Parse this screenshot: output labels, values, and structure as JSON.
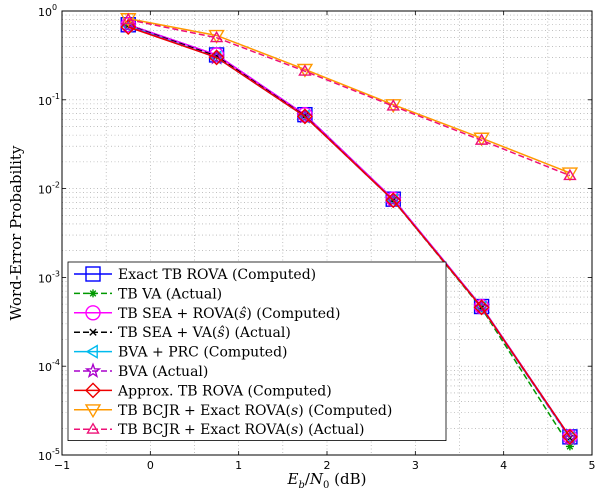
{
  "chart_data": {
    "type": "line",
    "xlabel": "E_b/N_0 (dB)",
    "xlabel_parts": {
      "main1": "E",
      "sub1": "b",
      "slash": "/",
      "main2": "N",
      "sub2": "0",
      "unit": " (dB)"
    },
    "ylabel": "Word-Error Probability",
    "xlim": [
      -1,
      5
    ],
    "ylim": [
      1e-05,
      1
    ],
    "yscale": "log",
    "grid": true,
    "legend_position": "lower-left",
    "x_ticks": [
      {
        "value": -1,
        "label": "−1"
      },
      {
        "value": 0,
        "label": "0"
      },
      {
        "value": 1,
        "label": "1"
      },
      {
        "value": 2,
        "label": "2"
      },
      {
        "value": 3,
        "label": "3"
      },
      {
        "value": 4,
        "label": "4"
      },
      {
        "value": 5,
        "label": "5"
      }
    ],
    "y_ticks": [
      {
        "value": 1,
        "base": "10",
        "exp": "0"
      },
      {
        "value": 0.1,
        "base": "10",
        "exp": "-1"
      },
      {
        "value": 0.01,
        "base": "10",
        "exp": "-2"
      },
      {
        "value": 0.001,
        "base": "10",
        "exp": "-3"
      },
      {
        "value": 0.0001,
        "base": "10",
        "exp": "-4"
      },
      {
        "value": 1e-05,
        "base": "10",
        "exp": "-5"
      }
    ],
    "x": [
      -0.25,
      0.75,
      1.75,
      2.75,
      3.75,
      4.75
    ],
    "series": [
      {
        "name": "Exact TB ROVA (Computed)",
        "values": [
          0.7,
          0.32,
          0.068,
          0.0076,
          0.00047,
          1.6e-05
        ],
        "color": "#0000ff",
        "dash": "solid",
        "marker": "square"
      },
      {
        "name": "TB VA (Actual)",
        "values": [
          0.69,
          0.31,
          0.066,
          0.0074,
          0.00045,
          1.25e-05
        ],
        "color": "#009900",
        "dash": "dashed",
        "marker": "asterisk"
      },
      {
        "name": "TB SEA + ROVA(ŝ) (Computed)",
        "values": [
          0.7,
          0.32,
          0.068,
          0.0076,
          0.00047,
          1.6e-05
        ],
        "color": "#ff00ff",
        "dash": "solid",
        "marker": "circle"
      },
      {
        "name": "TB SEA + VA(ŝ) (Actual)",
        "values": [
          0.69,
          0.31,
          0.066,
          0.0074,
          0.00046,
          1.55e-05
        ],
        "color": "#000000",
        "dash": "dashed",
        "marker": "x"
      },
      {
        "name": "BVA + PRC (Computed)",
        "values": [
          0.68,
          0.3,
          0.065,
          0.0074,
          0.00046,
          1.55e-05
        ],
        "color": "#00bbee",
        "dash": "solid",
        "marker": "triangle-left"
      },
      {
        "name": "BVA (Actual)",
        "values": [
          0.68,
          0.3,
          0.065,
          0.0074,
          0.00046,
          1.55e-05
        ],
        "color": "#aa00cc",
        "dash": "dashed",
        "marker": "star"
      },
      {
        "name": "Approx. TB ROVA (Computed)",
        "values": [
          0.66,
          0.3,
          0.065,
          0.0074,
          0.00046,
          1.6e-05
        ],
        "color": "#ee0000",
        "dash": "solid",
        "marker": "diamond"
      },
      {
        "name": "TB BCJR + Exact ROVA(s) (Computed)",
        "values": [
          0.82,
          0.53,
          0.22,
          0.088,
          0.037,
          0.015
        ],
        "color": "#ff9900",
        "dash": "solid",
        "marker": "triangle-down"
      },
      {
        "name": "TB BCJR + Exact ROVA(s) (Actual)",
        "values": [
          0.8,
          0.5,
          0.21,
          0.085,
          0.035,
          0.014
        ],
        "color": "#ee1177",
        "dash": "dashed",
        "marker": "triangle-up"
      }
    ],
    "legend": [
      {
        "parts": [
          "Exact TB ROVA (Computed)"
        ]
      },
      {
        "parts": [
          "TB VA (Actual)"
        ]
      },
      {
        "parts": [
          "TB SEA + ROVA(",
          "ŝ",
          ") (Computed)"
        ]
      },
      {
        "parts": [
          "TB SEA + VA(",
          "ŝ",
          ") (Actual)"
        ]
      },
      {
        "parts": [
          "BVA + PRC (Computed)"
        ]
      },
      {
        "parts": [
          "BVA (Actual)"
        ]
      },
      {
        "parts": [
          "Approx. TB ROVA (Computed)"
        ]
      },
      {
        "parts": [
          "TB BCJR + Exact ROVA(",
          "s",
          ") (Computed)"
        ]
      },
      {
        "parts": [
          "TB BCJR + Exact ROVA(",
          "s",
          ") (Actual)"
        ]
      }
    ]
  }
}
